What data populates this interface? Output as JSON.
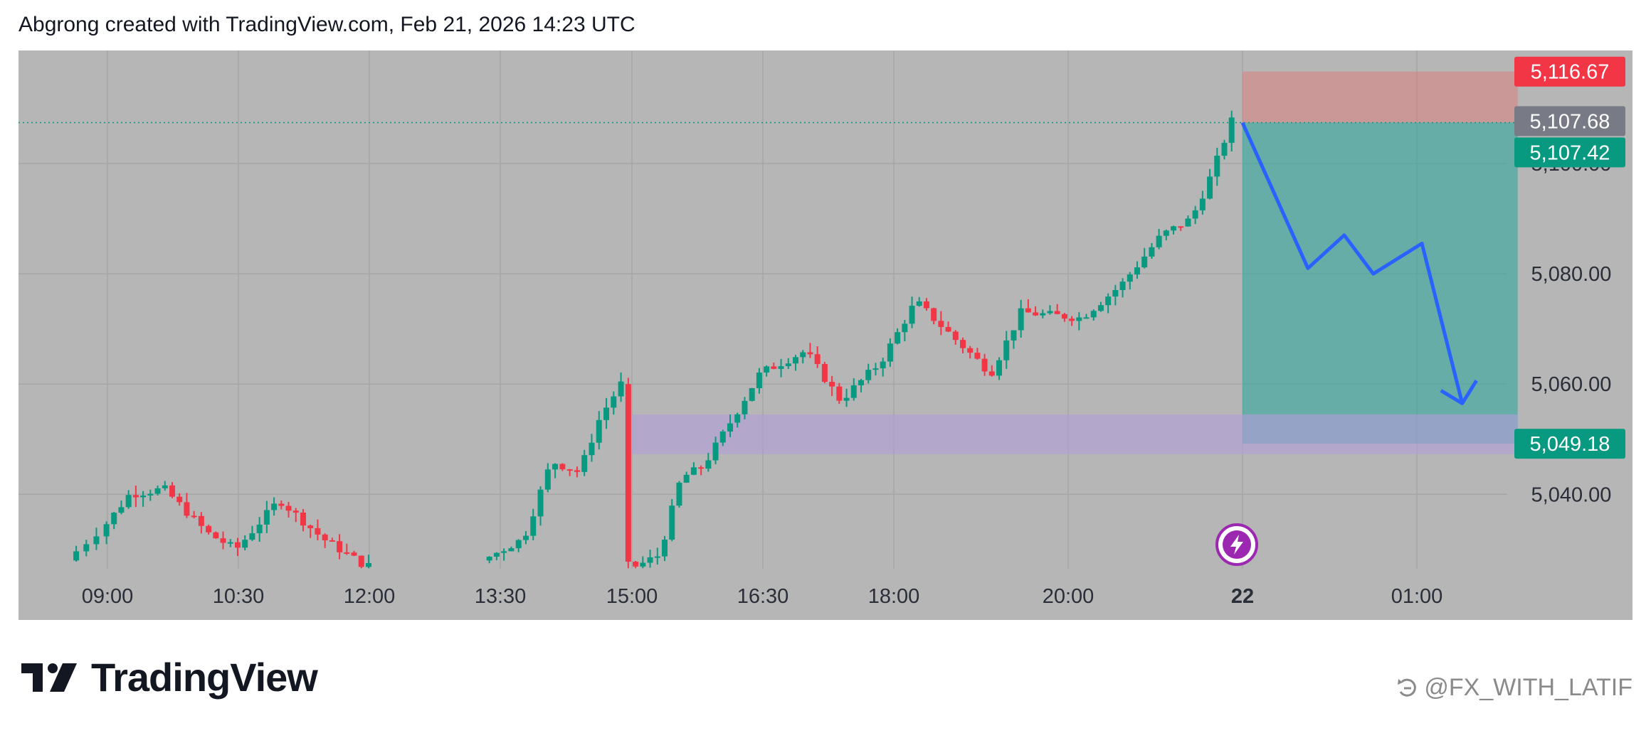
{
  "header": {
    "attribution": "Abgrong created with TradingView.com, Feb 21, 2026 14:23 UTC"
  },
  "brand": {
    "name": "TradingView",
    "logo_icon": "tradingview-logo-icon"
  },
  "watermark": {
    "text": "@FX_WITH_LATIF",
    "icon": "repost-icon"
  },
  "colors": {
    "panel_background": "#b6b6b6",
    "up_candle": "#089981",
    "down_candle": "#f23645",
    "stop_zone": "#e57373",
    "target_zone": "#26a69a",
    "demand_zone": "#b39ddb",
    "projection_arrow": "#2962ff",
    "lightning_badge": "#9c27b0"
  },
  "chart_data": {
    "type": "candlestick",
    "symbol": "",
    "price_axis": {
      "ticks": [
        {
          "value": 5100.0,
          "label": "5,100.00"
        },
        {
          "value": 5080.0,
          "label": "5,080.00"
        },
        {
          "value": 5060.0,
          "label": "5,060.00"
        },
        {
          "value": 5040.0,
          "label": "5,040.00"
        }
      ],
      "range": [
        5026.5,
        5120.5
      ]
    },
    "price_labels": [
      {
        "value": 5116.67,
        "label": "5,116.67",
        "kind": "stop-loss",
        "color": "#f23645"
      },
      {
        "value": 5107.68,
        "label": "5,107.68",
        "kind": "last-price",
        "color": "#787b86"
      },
      {
        "value": 5107.42,
        "label": "5,107.42",
        "kind": "entry",
        "color": "#089981"
      },
      {
        "value": 5049.18,
        "label": "5,049.18",
        "kind": "take-profit",
        "color": "#089981"
      }
    ],
    "time_axis": {
      "labels": [
        {
          "label": "09:00",
          "bold": false
        },
        {
          "label": "10:30",
          "bold": false
        },
        {
          "label": "12:00",
          "bold": false
        },
        {
          "label": "13:30",
          "bold": false
        },
        {
          "label": "15:00",
          "bold": false
        },
        {
          "label": "16:30",
          "bold": false
        },
        {
          "label": "18:00",
          "bold": false
        },
        {
          "label": "20:00",
          "bold": false
        },
        {
          "label": "22",
          "bold": true
        },
        {
          "label": "01:00",
          "bold": false
        }
      ]
    },
    "session_segments": [
      {
        "start": "08:42",
        "end": "12:00",
        "from_price": 5028,
        "path": [
          [
            0.0,
            5028
          ],
          [
            0.18,
            5040
          ],
          [
            0.3,
            5041
          ],
          [
            0.45,
            5033
          ],
          [
            0.55,
            5030
          ],
          [
            0.7,
            5039
          ],
          [
            0.85,
            5032
          ],
          [
            1.0,
            5027
          ]
        ]
      },
      {
        "start": "13:20",
        "end": "14:55",
        "from_price": 5028,
        "path": [
          [
            0.0,
            5028
          ],
          [
            0.3,
            5032
          ],
          [
            0.5,
            5046
          ],
          [
            0.7,
            5044
          ],
          [
            0.85,
            5054
          ],
          [
            1.0,
            5060
          ]
        ]
      },
      {
        "start": "14:55",
        "end": "16:10",
        "from_price": 5060,
        "path": [
          [
            0.0,
            5060
          ],
          [
            0.04,
            5027
          ],
          [
            0.15,
            5027
          ],
          [
            0.35,
            5029
          ],
          [
            0.55,
            5043
          ],
          [
            0.75,
            5045
          ],
          [
            1.0,
            5053
          ]
        ]
      },
      {
        "start": "16:10",
        "end": "21:55",
        "from_price": 5053,
        "path": [
          [
            0.0,
            5053
          ],
          [
            0.06,
            5062
          ],
          [
            0.15,
            5066
          ],
          [
            0.22,
            5057
          ],
          [
            0.3,
            5064
          ],
          [
            0.37,
            5075
          ],
          [
            0.45,
            5068
          ],
          [
            0.52,
            5062
          ],
          [
            0.58,
            5073
          ],
          [
            0.7,
            5072
          ],
          [
            0.78,
            5078
          ],
          [
            0.86,
            5087
          ],
          [
            0.92,
            5090
          ],
          [
            0.96,
            5098
          ],
          [
            1.0,
            5107.7
          ]
        ]
      }
    ],
    "zones": [
      {
        "name": "stop",
        "price_top": 5116.67,
        "price_bottom": 5107.42,
        "start": "22:00",
        "end": "01:40"
      },
      {
        "name": "target",
        "price_top": 5107.42,
        "price_bottom": 5049.18,
        "start": "22:00",
        "end": "01:40"
      },
      {
        "name": "demand",
        "price_top": 5054.5,
        "price_bottom": 5047.3,
        "start": "15:00",
        "end": "01:40"
      }
    ],
    "projection": [
      {
        "time": "22:00",
        "price": 5107.4
      },
      {
        "time": "22:45",
        "price": 5081.0
      },
      {
        "time": "23:10",
        "price": 5087.0
      },
      {
        "time": "23:30",
        "price": 5080.0
      },
      {
        "time": "00:05",
        "price": 5085.5
      },
      {
        "time": "00:45",
        "price": 5056.5
      }
    ],
    "grid": true
  }
}
